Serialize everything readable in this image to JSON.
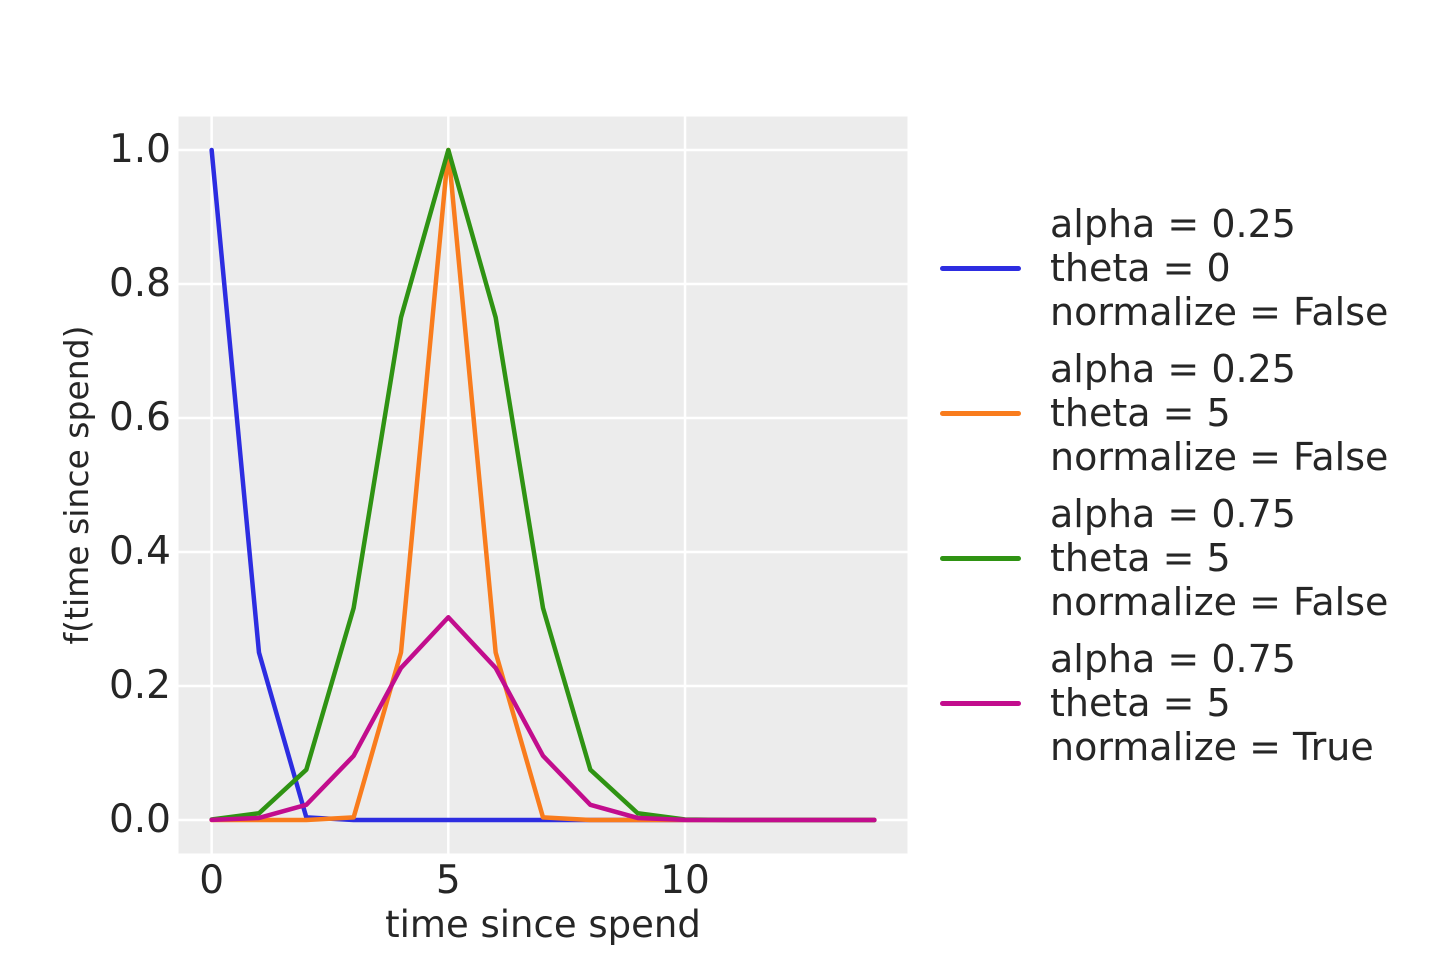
{
  "figure": {
    "background": "#ffffff",
    "plot_background": "#ececec",
    "grid_color": "#ffffff",
    "text_color": "#262626"
  },
  "chart_data": {
    "type": "line",
    "title": "",
    "xlabel": "time since spend",
    "ylabel": "f(time since spend)",
    "grid": true,
    "legend_position": "right-of-plot",
    "xlim": [
      -0.7,
      14.7
    ],
    "ylim": [
      -0.05,
      1.05
    ],
    "x": [
      0,
      1,
      2,
      3,
      4,
      5,
      6,
      7,
      8,
      9,
      10,
      11,
      12,
      13,
      14
    ],
    "x_ticks": {
      "values": [
        0,
        5,
        10
      ],
      "labels": [
        "0",
        "5",
        "10"
      ]
    },
    "y_ticks": {
      "values": [
        1.0,
        0.8,
        0.6,
        0.4,
        0.2,
        0.0
      ],
      "labels": [
        "1.0",
        "0.8",
        "0.6",
        "0.4",
        "0.2",
        "0.0"
      ]
    },
    "series": [
      {
        "name": "alpha = 0.25, theta = 0, normalize = False",
        "legend_lines": [
          "alpha = 0.25",
          "theta = 0",
          "normalize = False"
        ],
        "color": "#2d2de1",
        "values": [
          1,
          0.25,
          0.00391,
          0,
          0,
          0,
          0,
          0,
          0,
          0,
          0,
          0,
          0,
          0,
          0
        ]
      },
      {
        "name": "alpha = 0.25, theta = 5, normalize = False",
        "legend_lines": [
          "alpha = 0.25",
          "theta = 5",
          "normalize = False"
        ],
        "color": "#f97c1d",
        "values": [
          0,
          0,
          0,
          0.00391,
          0.25,
          1,
          0.25,
          0.00391,
          0,
          0,
          0,
          0,
          0,
          0,
          0
        ]
      },
      {
        "name": "alpha = 0.75, theta = 5, normalize = False",
        "legend_lines": [
          "alpha = 0.75",
          "theta = 5",
          "normalize = False"
        ],
        "color": "#2f9313",
        "values": [
          0.00075,
          0.01002,
          0.07508,
          0.31641,
          0.75,
          1,
          0.75,
          0.31641,
          0.07508,
          0.01002,
          0.00075,
          3e-05,
          0,
          0,
          0
        ]
      },
      {
        "name": "alpha = 0.75, theta = 5, normalize = True",
        "legend_lines": [
          "alpha = 0.75",
          "theta = 5",
          "normalize = True"
        ],
        "color": "#c20d8d",
        "values": [
          0.00023,
          0.00303,
          0.02272,
          0.09575,
          0.22696,
          0.30261,
          0.22696,
          0.09575,
          0.02272,
          0.00303,
          0.00023,
          1e-05,
          0,
          0,
          0
        ]
      }
    ]
  }
}
